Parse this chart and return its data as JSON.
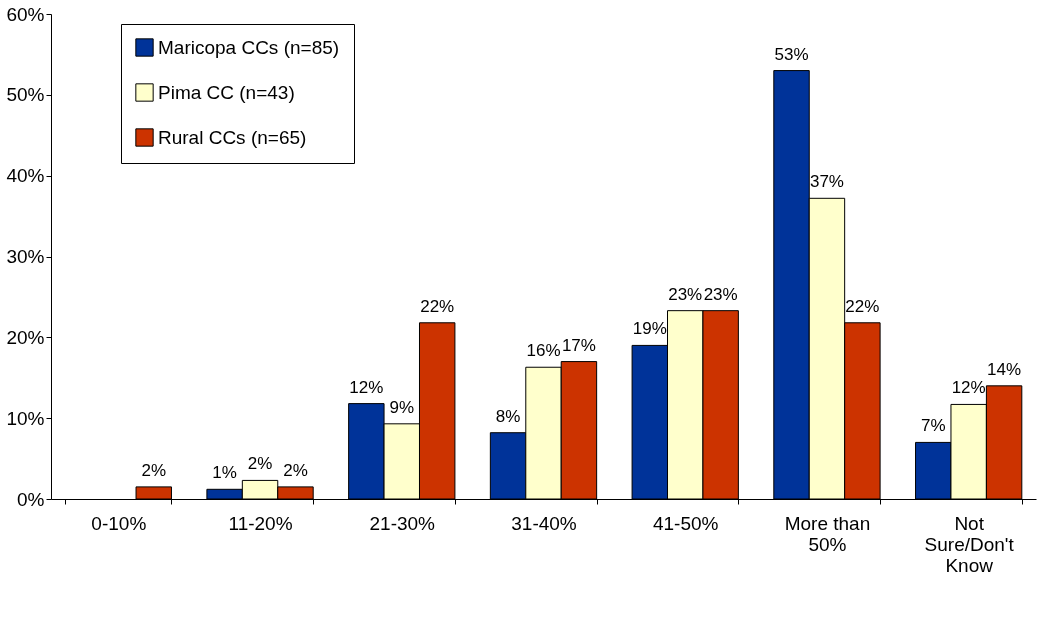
{
  "chart_data": {
    "type": "bar",
    "categories": [
      "0-10%",
      "11-20%",
      "21-30%",
      "31-40%",
      "41-50%",
      "More than\n50%",
      "Not\nSure/Don't\nKnow"
    ],
    "series": [
      {
        "name": "Maricopa CCs (n=85)",
        "color": "#003399",
        "values": [
          null,
          1.2,
          11.8,
          8.2,
          19,
          53,
          7
        ],
        "value_labels": [
          null,
          "1%",
          "12%",
          "8%",
          "19%",
          "53%",
          "7%"
        ]
      },
      {
        "name": "Pima CC (n=43)",
        "color": "#ffffcc",
        "values": [
          null,
          2.3,
          9.3,
          16.3,
          23.3,
          37.2,
          11.7
        ],
        "value_labels": [
          null,
          "2%",
          "9%",
          "16%",
          "23%",
          "37%",
          "12%"
        ]
      },
      {
        "name": "Rural CCs (n=65)",
        "color": "#cc3300",
        "values": [
          1.5,
          1.5,
          21.8,
          17,
          23.3,
          21.8,
          14
        ],
        "value_labels": [
          "2%",
          "2%",
          "22%",
          "17%",
          "23%",
          "22%",
          "14%"
        ]
      }
    ],
    "ylim": [
      0,
      60
    ],
    "yticks": [
      {
        "value": 0,
        "label": "0%"
      },
      {
        "value": 10,
        "label": "10%"
      },
      {
        "value": 20,
        "label": "20%"
      },
      {
        "value": 30,
        "label": "30%"
      },
      {
        "value": 40,
        "label": "40%"
      },
      {
        "value": 50,
        "label": "50%"
      },
      {
        "value": 60,
        "label": "60%"
      }
    ],
    "grid": false,
    "legend": "top left"
  }
}
